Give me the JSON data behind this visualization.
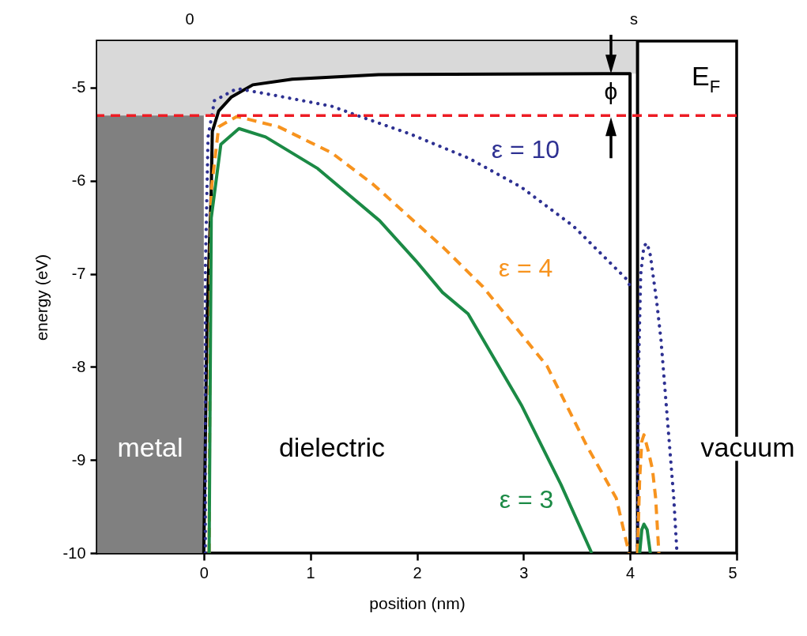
{
  "chart_data": {
    "type": "line",
    "xlabel": "position (nm)",
    "ylabel": "energy (eV)",
    "xlim": [
      -1,
      5
    ],
    "xticks": [
      0,
      1,
      2,
      3,
      4,
      5
    ],
    "ylim": [
      -10,
      -4.5
    ],
    "yticks": [
      -10,
      -9,
      -8,
      -7,
      -6,
      -5
    ],
    "ref_lines": [
      {
        "axis": "y",
        "value": -5.3,
        "label": "E$_{F}$",
        "color": "#ed1c24",
        "line_style": "dashed"
      }
    ],
    "bands": [
      {
        "axis": "x",
        "from": -1,
        "to": 0,
        "label": "metal",
        "color": "#808080"
      }
    ],
    "annotations": [
      "dielectric",
      "vacuum",
      "ϕ",
      "0",
      "s"
    ],
    "series": [
      {
        "type": "area",
        "color": "#d9d9d9",
        "x": [
          -1,
          0,
          0.1,
          0.14,
          0.26,
          0.46,
          0.83,
          1.64,
          4.0,
          4.07
        ],
        "values": [
          -5.3,
          -5.3,
          -5.3,
          -5.25,
          -5.1,
          -4.97,
          -4.91,
          -4.86,
          -4.85,
          -4.85
        ]
      },
      {
        "color": "#000000",
        "x": [
          0,
          0.03,
          0.07,
          0.08,
          0.14,
          0.26,
          0.46,
          0.83,
          1.64,
          4.0,
          4.0,
          4.07,
          4.07
        ],
        "values": [
          -10,
          -7.5,
          -6.1,
          -5.47,
          -5.25,
          -5.1,
          -4.97,
          -4.91,
          -4.86,
          -4.85,
          -10,
          -10,
          -4.5
        ]
      },
      {
        "name": "ε = 10",
        "color": "#2e3192",
        "line_style": "dotted",
        "x": [
          0.015,
          0.015,
          0.04,
          0.1,
          0.31,
          0.7,
          1.2,
          1.59,
          1.94,
          2.49,
          2.98,
          3.47,
          3.96,
          4.0,
          4.03,
          4.07,
          4.08,
          4.1,
          4.13,
          4.16,
          4.19,
          4.25,
          4.29,
          4.35,
          4.41,
          4.44
        ],
        "values": [
          -10,
          -6.94,
          -5.53,
          -5.14,
          -5.01,
          -5.09,
          -5.2,
          -5.36,
          -5.5,
          -5.76,
          -6.07,
          -6.49,
          -7.05,
          -7.13,
          null,
          -10,
          -8,
          -7,
          -6.7,
          -6.67,
          -6.8,
          -7.3,
          -7.71,
          -8.56,
          -9.41,
          -10
        ]
      },
      {
        "name": "ε = 4",
        "color": "#f7931e",
        "line_style": "dashed",
        "x": [
          0.05,
          0.06,
          0.07,
          0.14,
          0.31,
          0.7,
          1.2,
          1.59,
          2.25,
          2.62,
          3.22,
          3.59,
          3.87,
          3.99,
          4.03,
          4.07,
          4.09,
          4.11,
          4.13,
          4.17,
          4.21,
          4.24,
          4.27
        ],
        "values": [
          -10,
          -7,
          -6.1,
          -5.42,
          -5.31,
          -5.42,
          -5.7,
          -6.04,
          -6.72,
          -7.14,
          -7.99,
          -8.84,
          -9.41,
          -10,
          null,
          -10,
          -9.2,
          -8.8,
          -8.73,
          -8.9,
          -9.1,
          -9.41,
          -10
        ]
      },
      {
        "name": "ε = 3",
        "color": "#1b8a45",
        "x": [
          0.05,
          0.07,
          0.16,
          0.33,
          0.58,
          1.07,
          1.65,
          1.99,
          2.24,
          2.48,
          2.98,
          3.35,
          3.64,
          3.8,
          4.09,
          4.11,
          4.13,
          4.16,
          4.19
        ],
        "values": [
          -10,
          -6.4,
          -5.61,
          -5.44,
          -5.53,
          -5.87,
          -6.43,
          -6.86,
          -7.2,
          -7.43,
          -8.41,
          -9.26,
          -10,
          null,
          -10,
          -9.75,
          -9.69,
          -9.75,
          -10
        ]
      }
    ]
  }
}
